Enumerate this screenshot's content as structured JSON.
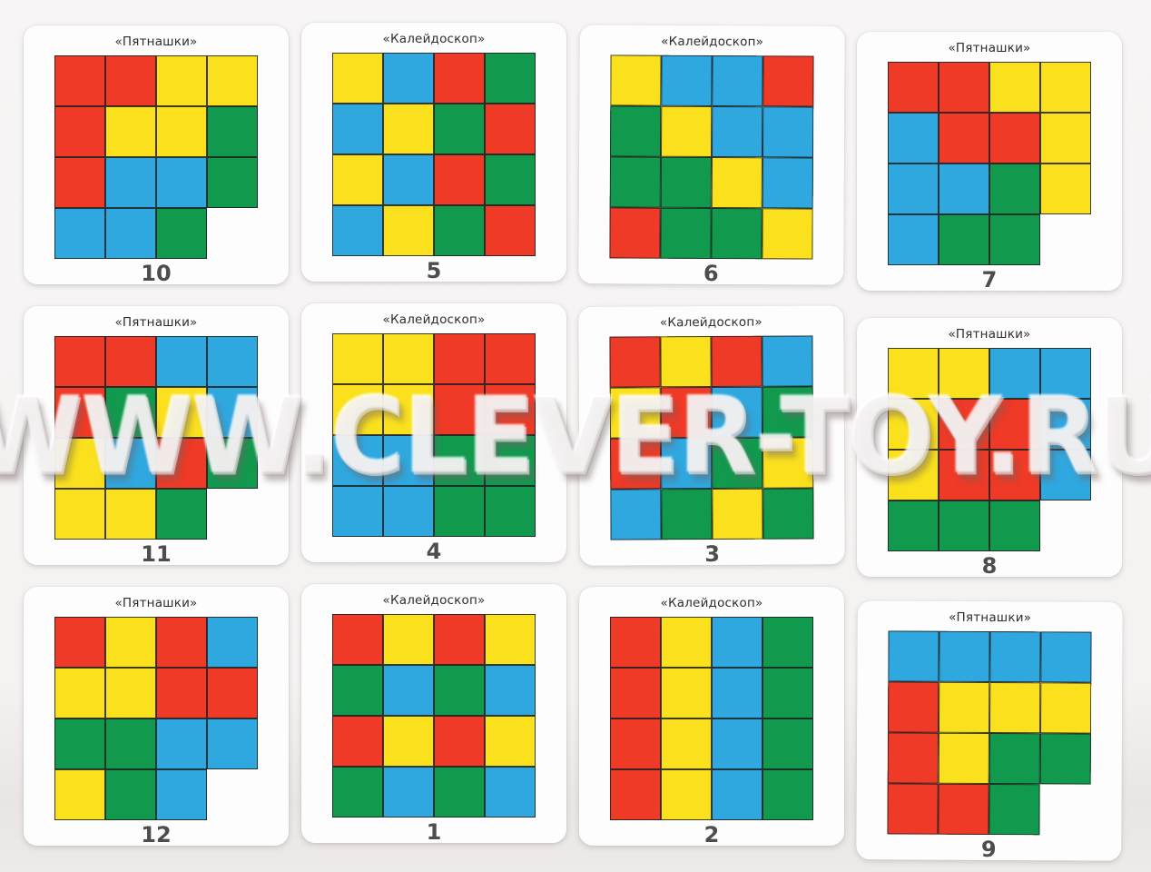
{
  "watermark": "WWW.CLEVER-TOY.RU",
  "palette": {
    "R": "#ee3a26",
    "Y": "#fbe11d",
    "B": "#2fa8e0",
    "G": "#119a4e"
  },
  "cards": [
    {
      "title": "«Пятнашки»",
      "number": "10",
      "grid": [
        "R",
        "R",
        "Y",
        "Y",
        "R",
        "Y",
        "Y",
        "G",
        "R",
        "B",
        "B",
        "G",
        "B",
        "B",
        "G",
        "-"
      ]
    },
    {
      "title": "«Калейдоскоп»",
      "number": "5",
      "grid": [
        "Y",
        "B",
        "R",
        "G",
        "B",
        "Y",
        "G",
        "R",
        "Y",
        "B",
        "R",
        "G",
        "B",
        "Y",
        "G",
        "R"
      ]
    },
    {
      "title": "«Калейдоскоп»",
      "number": "6",
      "grid": [
        "Y",
        "B",
        "B",
        "R",
        "G",
        "Y",
        "B",
        "B",
        "G",
        "G",
        "Y",
        "B",
        "R",
        "G",
        "G",
        "Y"
      ]
    },
    {
      "title": "«Пятнашки»",
      "number": "7",
      "grid": [
        "R",
        "R",
        "Y",
        "Y",
        "B",
        "R",
        "R",
        "Y",
        "B",
        "B",
        "G",
        "Y",
        "B",
        "G",
        "G",
        "-"
      ]
    },
    {
      "title": "«Пятнашки»",
      "number": "11",
      "grid": [
        "R",
        "R",
        "B",
        "B",
        "R",
        "G",
        "Y",
        "B",
        "Y",
        "B",
        "R",
        "G",
        "Y",
        "Y",
        "G",
        "-"
      ]
    },
    {
      "title": "«Калейдоскоп»",
      "number": "4",
      "grid": [
        "Y",
        "Y",
        "R",
        "R",
        "Y",
        "Y",
        "R",
        "R",
        "B",
        "B",
        "G",
        "G",
        "B",
        "B",
        "G",
        "G"
      ]
    },
    {
      "title": "«Калейдоскоп»",
      "number": "3",
      "grid": [
        "R",
        "Y",
        "R",
        "B",
        "Y",
        "R",
        "B",
        "G",
        "R",
        "B",
        "G",
        "Y",
        "B",
        "G",
        "Y",
        "G"
      ]
    },
    {
      "title": "«Пятнашки»",
      "number": "8",
      "grid": [
        "Y",
        "Y",
        "B",
        "B",
        "Y",
        "R",
        "R",
        "B",
        "Y",
        "R",
        "R",
        "B",
        "G",
        "G",
        "G",
        "-"
      ]
    },
    {
      "title": "«Пятнашки»",
      "number": "12",
      "grid": [
        "R",
        "Y",
        "R",
        "B",
        "Y",
        "Y",
        "R",
        "R",
        "G",
        "G",
        "B",
        "B",
        "Y",
        "G",
        "B",
        "-"
      ]
    },
    {
      "title": "«Калейдоскоп»",
      "number": "1",
      "grid": [
        "R",
        "Y",
        "R",
        "Y",
        "G",
        "B",
        "G",
        "B",
        "R",
        "Y",
        "R",
        "Y",
        "G",
        "B",
        "G",
        "B"
      ]
    },
    {
      "title": "«Калейдоскоп»",
      "number": "2",
      "grid": [
        "R",
        "Y",
        "B",
        "G",
        "R",
        "Y",
        "B",
        "G",
        "R",
        "Y",
        "B",
        "G",
        "R",
        "Y",
        "B",
        "G"
      ]
    },
    {
      "title": "«Пятнашки»",
      "number": "9",
      "grid": [
        "B",
        "B",
        "B",
        "B",
        "R",
        "Y",
        "Y",
        "Y",
        "R",
        "Y",
        "G",
        "G",
        "R",
        "R",
        "G",
        "-"
      ]
    }
  ]
}
